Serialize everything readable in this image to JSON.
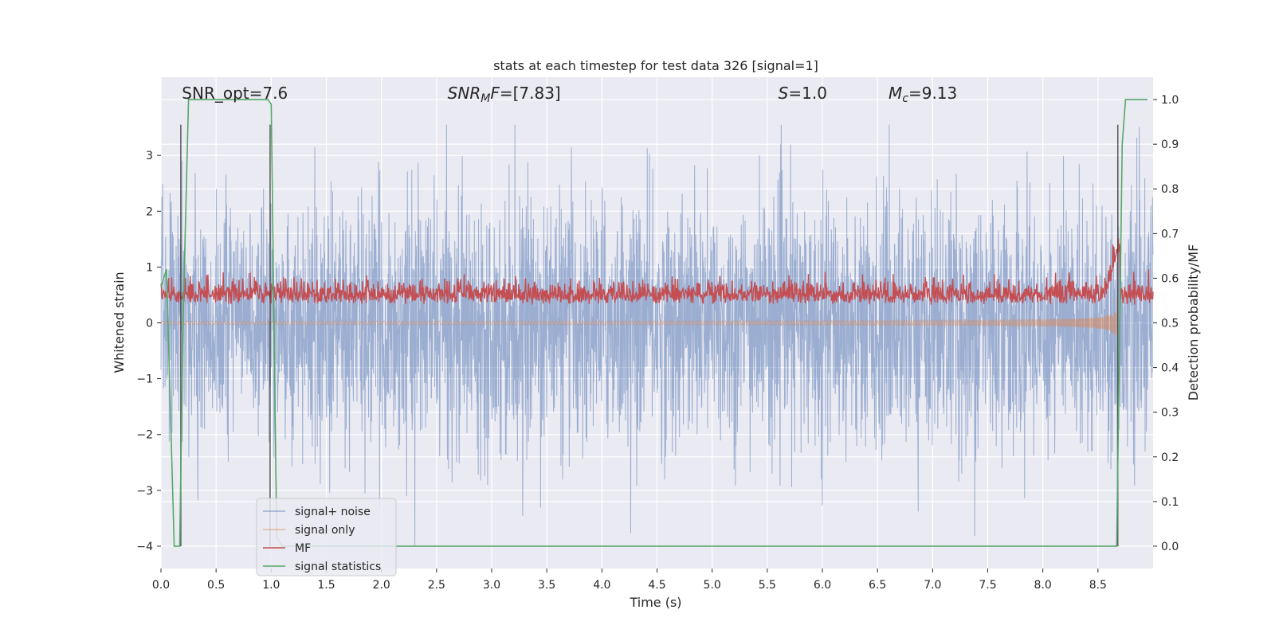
{
  "chart_data": {
    "type": "line",
    "title": "stats at each timestep for test data 326 [signal=1]",
    "xlabel": "Time (s)",
    "ylabel": "Whitened strain",
    "y2label": "Detection probability/MF",
    "xlim": [
      0.0,
      9.0
    ],
    "ylim": [
      -4.4,
      4.4
    ],
    "y2lim": [
      -0.05,
      1.05
    ],
    "xticks": [
      "0.0",
      "0.5",
      "1.0",
      "1.5",
      "2.0",
      "2.5",
      "3.0",
      "3.5",
      "4.0",
      "4.5",
      "5.0",
      "5.5",
      "6.0",
      "6.5",
      "7.0",
      "7.5",
      "8.0",
      "8.5"
    ],
    "xtick_values": [
      0,
      0.5,
      1,
      1.5,
      2,
      2.5,
      3,
      3.5,
      4,
      4.5,
      5,
      5.5,
      6,
      6.5,
      7,
      7.5,
      8,
      8.5
    ],
    "yticks": [
      "3",
      "2",
      "1",
      "0",
      "−1",
      "−2",
      "−3",
      "−4"
    ],
    "ytick_values": [
      3,
      2,
      1,
      0,
      -1,
      -2,
      -3,
      -4
    ],
    "y2ticks": [
      "1.0",
      "0.9",
      "0.8",
      "0.7",
      "0.6",
      "0.5",
      "0.4",
      "0.3",
      "0.2",
      "0.1",
      "0.0"
    ],
    "y2tick_values": [
      1.0,
      0.9,
      0.8,
      0.7,
      0.6,
      0.5,
      0.4,
      0.3,
      0.2,
      0.1,
      0.0
    ],
    "grid": true,
    "legend_position": "bottom-left",
    "annotations": [
      {
        "id": "snr-opt",
        "html": "SNR_opt=7.6",
        "x": 0.19
      },
      {
        "id": "snr-mf",
        "html": "<tspan font-style=\"italic\">SNR</tspan><tspan font-style=\"italic\" font-size=\"14\" dy=\"4\">M</tspan><tspan font-style=\"italic\" dy=\"-4\">F</tspan>=[7.83]",
        "x": 2.6
      },
      {
        "id": "s-val",
        "html": "<tspan font-style=\"italic\">S</tspan>=1.0",
        "x": 5.6
      },
      {
        "id": "mc-val",
        "html": "<tspan font-style=\"italic\">M</tspan><tspan font-style=\"italic\" font-size=\"14\" dy=\"4\">c</tspan><tspan dy=\"-4\">=9.13</tspan>",
        "x": 6.6
      }
    ],
    "vlines": [
      0.18,
      0.99,
      8.68
    ],
    "series": [
      {
        "name": "signal+ noise",
        "axis": "left",
        "color": "#4c72b0",
        "opacity": 0.5,
        "description": "noisy whitened strain, roughly within ±2 with spikes to ±3.5"
      },
      {
        "name": "signal only",
        "axis": "left",
        "color": "#dd8452",
        "opacity": 0.5,
        "description": "chirp signal amplitude growing to about ±1 near t=8.68"
      },
      {
        "name": "MF",
        "axis": "right",
        "color": "#c44e52",
        "opacity": 1.0,
        "description": "matched filter output around 0.55–0.62 on right axis"
      },
      {
        "name": "signal statistics",
        "axis": "right",
        "color": "#55a868",
        "opacity": 1.0,
        "x": [
          0.0,
          0.05,
          0.12,
          0.17,
          0.2,
          0.25,
          0.97,
          1.0,
          1.05,
          1.1,
          8.67,
          8.72,
          8.75,
          8.95
        ],
        "y": [
          0.58,
          0.62,
          0.0,
          0.0,
          0.5,
          1.0,
          1.0,
          0.99,
          0.02,
          0.0,
          0.0,
          0.9,
          1.0,
          1.0
        ]
      }
    ]
  }
}
